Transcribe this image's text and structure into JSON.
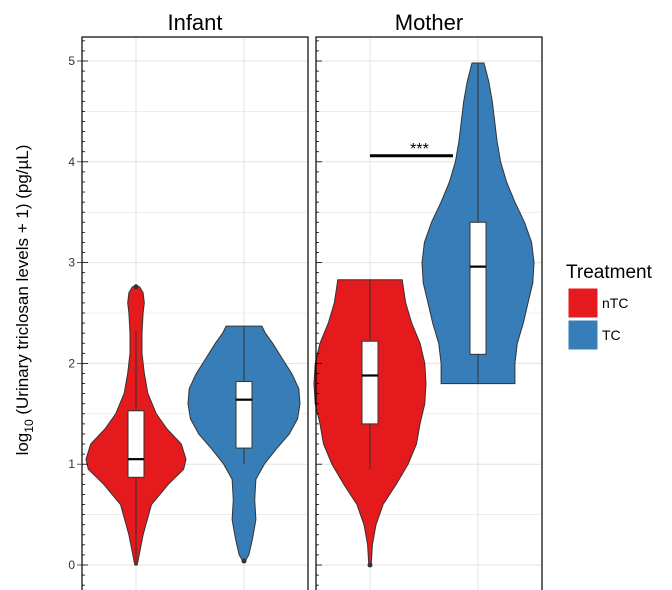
{
  "chart_data": {
    "type": "violin",
    "ylabel_parts": {
      "log": "log",
      "sub": "10",
      "rest": " (Urinary triclosan levels + 1) (pg/µL)"
    },
    "ylim": [
      -0.05,
      5.25
    ],
    "yticks": [
      "0",
      "1",
      "2",
      "3",
      "4",
      "5"
    ],
    "grid": true,
    "legend": {
      "title": "Treatment",
      "placement": "right",
      "items": [
        {
          "label": "nTC",
          "color": "#E41A1C"
        },
        {
          "label": "TC",
          "color": "#377EB8"
        }
      ]
    },
    "panels": [
      {
        "title": "Infant",
        "groups": [
          {
            "group": "nTC",
            "color": "#E41A1C",
            "violin_ymin": 0.0,
            "violin_ymax": 2.76,
            "density": [
              [
                0.0,
                0.01
              ],
              [
                0.3,
                0.06
              ],
              [
                0.6,
                0.13
              ],
              [
                0.8,
                0.27
              ],
              [
                0.95,
                0.4
              ],
              [
                1.05,
                0.42
              ],
              [
                1.2,
                0.38
              ],
              [
                1.35,
                0.26
              ],
              [
                1.5,
                0.17
              ],
              [
                1.7,
                0.1
              ],
              [
                1.9,
                0.07
              ],
              [
                2.1,
                0.05
              ],
              [
                2.3,
                0.05
              ],
              [
                2.5,
                0.06
              ],
              [
                2.6,
                0.07
              ],
              [
                2.7,
                0.06
              ],
              [
                2.76,
                0.03
              ]
            ],
            "whisker_low": 0.0,
            "q1": 0.87,
            "median": 1.05,
            "q3": 1.53,
            "whisker_high": 2.32,
            "outliers": [
              2.76
            ]
          },
          {
            "group": "TC",
            "color": "#377EB8",
            "violin_ymin": 0.04,
            "violin_ymax": 2.37,
            "density": [
              [
                0.04,
                0.01
              ],
              [
                0.1,
                0.04
              ],
              [
                0.25,
                0.07
              ],
              [
                0.45,
                0.1
              ],
              [
                0.65,
                0.09
              ],
              [
                0.85,
                0.1
              ],
              [
                1.0,
                0.17
              ],
              [
                1.15,
                0.27
              ],
              [
                1.3,
                0.38
              ],
              [
                1.45,
                0.45
              ],
              [
                1.6,
                0.47
              ],
              [
                1.75,
                0.46
              ],
              [
                1.9,
                0.4
              ],
              [
                2.05,
                0.32
              ],
              [
                2.2,
                0.24
              ],
              [
                2.3,
                0.18
              ],
              [
                2.37,
                0.15
              ]
            ],
            "whisker_low": 1.0,
            "q1": 1.16,
            "median": 1.64,
            "q3": 1.82,
            "whisker_high": 2.37,
            "outliers": [
              0.04
            ]
          }
        ]
      },
      {
        "title": "Mother",
        "groups": [
          {
            "group": "nTC",
            "color": "#E41A1C",
            "violin_ymin": 0.0,
            "violin_ymax": 2.83,
            "density": [
              [
                0.0,
                0.01
              ],
              [
                0.2,
                0.02
              ],
              [
                0.4,
                0.05
              ],
              [
                0.6,
                0.11
              ],
              [
                0.8,
                0.22
              ],
              [
                1.0,
                0.32
              ],
              [
                1.2,
                0.39
              ],
              [
                1.4,
                0.42
              ],
              [
                1.6,
                0.46
              ],
              [
                1.8,
                0.47
              ],
              [
                2.0,
                0.46
              ],
              [
                2.2,
                0.42
              ],
              [
                2.4,
                0.35
              ],
              [
                2.6,
                0.3
              ],
              [
                2.75,
                0.28
              ],
              [
                2.83,
                0.27
              ]
            ],
            "whisker_low": 0.95,
            "q1": 1.4,
            "median": 1.88,
            "q3": 2.22,
            "whisker_high": 2.83,
            "outliers": [
              0.0
            ]
          },
          {
            "group": "TC",
            "color": "#377EB8",
            "violin_ymin": 1.8,
            "violin_ymax": 4.98,
            "density": [
              [
                1.8,
                0.31
              ],
              [
                2.0,
                0.31
              ],
              [
                2.2,
                0.33
              ],
              [
                2.4,
                0.38
              ],
              [
                2.6,
                0.42
              ],
              [
                2.8,
                0.46
              ],
              [
                3.0,
                0.47
              ],
              [
                3.2,
                0.45
              ],
              [
                3.4,
                0.39
              ],
              [
                3.6,
                0.31
              ],
              [
                3.8,
                0.24
              ],
              [
                4.0,
                0.19
              ],
              [
                4.2,
                0.16
              ],
              [
                4.4,
                0.14
              ],
              [
                4.6,
                0.12
              ],
              [
                4.8,
                0.09
              ],
              [
                4.98,
                0.05
              ]
            ],
            "whisker_low": 1.8,
            "q1": 2.09,
            "median": 2.96,
            "q3": 3.4,
            "whisker_high": 4.98,
            "outliers": []
          }
        ],
        "annotation": {
          "label": "***",
          "y": 4.06,
          "from": "nTC",
          "to": "TC"
        }
      }
    ]
  }
}
